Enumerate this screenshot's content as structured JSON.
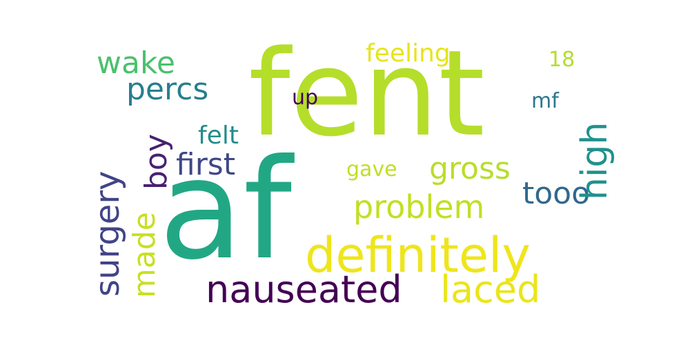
{
  "word_cloud": {
    "background": "#ffffff",
    "words": {
      "fent": {
        "text": "fent",
        "color": "#b5de2b"
      },
      "af": {
        "text": "af",
        "color": "#22a785"
      },
      "definitely": {
        "text": "definitely",
        "color": "#efe51c"
      },
      "nauseated": {
        "text": "nauseated",
        "color": "#440154"
      },
      "laced": {
        "text": "laced",
        "color": "#eae51a"
      },
      "problem": {
        "text": "problem",
        "color": "#c2df23"
      },
      "gross": {
        "text": "gross",
        "color": "#b8de29"
      },
      "first": {
        "text": "first",
        "color": "#3f4788"
      },
      "percs": {
        "text": "percs",
        "color": "#277f8e"
      },
      "wake": {
        "text": "wake",
        "color": "#4ac16d"
      },
      "tooo": {
        "text": "tooo",
        "color": "#31688e"
      },
      "feeling": {
        "text": "feeling",
        "color": "#e7e419"
      },
      "felt": {
        "text": "felt",
        "color": "#228c8d"
      },
      "gave": {
        "text": "gave",
        "color": "#c0df25"
      },
      "up": {
        "text": "up",
        "color": "#440154"
      },
      "mf": {
        "text": "mf",
        "color": "#2a788e"
      },
      "18": {
        "text": "18",
        "color": "#b2dd2d"
      },
      "surgery": {
        "text": "surgery",
        "color": "#414487"
      },
      "made": {
        "text": "made",
        "color": "#c8e020"
      },
      "boy": {
        "text": "boy",
        "color": "#482173"
      },
      "high": {
        "text": "high",
        "color": "#21918c"
      }
    }
  }
}
